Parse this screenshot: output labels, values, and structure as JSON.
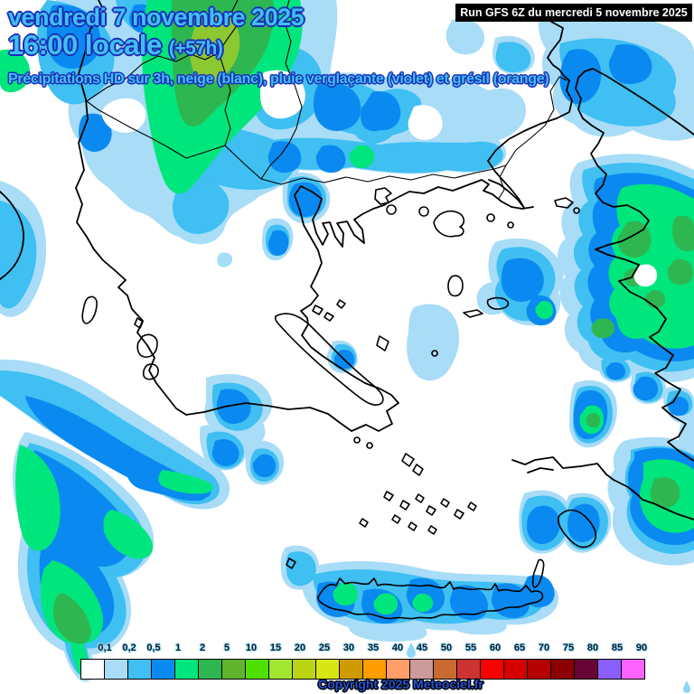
{
  "header": {
    "date_line": "vendredi 7 novembre 2025",
    "time_line": "16:00 locale",
    "offset_label": "(+57h)",
    "subtitle": "Précipitations HD sur 3h, neige (blanc), pluie verglaçante (violet) et grésil (orange)",
    "run_info": "Run GFS 6Z du mercredi 5 novembre 2025"
  },
  "legend": {
    "labels": [
      "0,1",
      "0,2",
      "0,5",
      "1",
      "2",
      "5",
      "10",
      "15",
      "20",
      "25",
      "30",
      "35",
      "40",
      "45",
      "50",
      "55",
      "60",
      "65",
      "70",
      "75",
      "80",
      "85",
      "90"
    ],
    "colors": [
      "#ffffff",
      "#a8dcf7",
      "#3fbff2",
      "#0a8af0",
      "#00e67d",
      "#2eb751",
      "#61b52c",
      "#50e000",
      "#a2e632",
      "#bbd414",
      "#d8e614",
      "#cf9b00",
      "#ff9c00",
      "#ff9e69",
      "#cb9a9b",
      "#c96a31",
      "#cc3432",
      "#fb0000",
      "#d70000",
      "#b30000",
      "#8b0000",
      "#670433",
      "#8a5eff",
      "#ff63ff"
    ]
  },
  "map": {
    "precip_levels": {
      "pale": "#a8dcf7",
      "sky": "#3fbff2",
      "blue": "#0a8af0",
      "light_green": "#00e67d",
      "green": "#2eb751",
      "olive": "#8cc832"
    },
    "coastline_color": "#000000"
  },
  "footer": {
    "copyright": "Copyright 2025 Meteociel.fr"
  }
}
